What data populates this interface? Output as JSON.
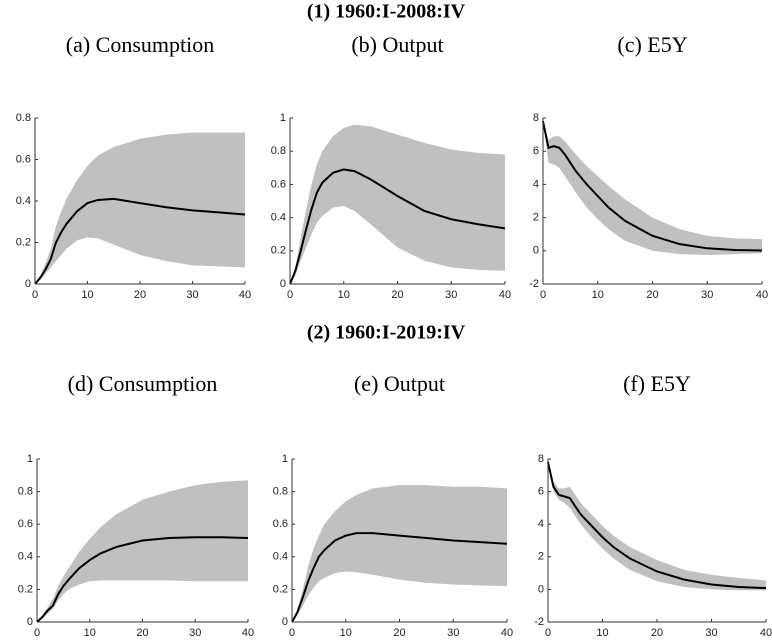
{
  "sections": [
    {
      "title": "(1) 1960:I-2008:IV"
    },
    {
      "title": "(2) 1960:I-2019:IV"
    }
  ],
  "chart_data": [
    {
      "type": "line",
      "title": "(a) Consumption",
      "x": [
        0,
        1,
        2,
        3,
        4,
        5,
        6,
        8,
        10,
        12,
        15,
        20,
        25,
        30,
        35,
        40
      ],
      "series": [
        {
          "color": "#000000",
          "band_color": "#c0c0c0",
          "values": [
            0,
            0.03,
            0.07,
            0.12,
            0.2,
            0.25,
            0.29,
            0.35,
            0.39,
            0.405,
            0.41,
            0.39,
            0.37,
            0.355,
            0.345,
            0.335
          ],
          "lower": [
            0,
            0.02,
            0.05,
            0.08,
            0.11,
            0.14,
            0.17,
            0.21,
            0.225,
            0.22,
            0.19,
            0.14,
            0.11,
            0.09,
            0.085,
            0.08
          ],
          "upper": [
            0,
            0.04,
            0.1,
            0.17,
            0.28,
            0.35,
            0.41,
            0.5,
            0.57,
            0.62,
            0.66,
            0.7,
            0.72,
            0.73,
            0.73,
            0.73
          ]
        }
      ],
      "xlim": [
        0,
        40
      ],
      "xticks": [
        0,
        10,
        20,
        30,
        40
      ],
      "ylim": [
        0,
        0.8
      ],
      "yticks": [
        0,
        0.2,
        0.4,
        0.6,
        0.8
      ]
    },
    {
      "type": "line",
      "title": "(b) Output",
      "x": [
        0,
        1,
        2,
        3,
        4,
        5,
        6,
        8,
        10,
        12,
        15,
        20,
        25,
        30,
        35,
        40
      ],
      "series": [
        {
          "color": "#000000",
          "band_color": "#c0c0c0",
          "values": [
            0,
            0.08,
            0.2,
            0.33,
            0.45,
            0.55,
            0.61,
            0.67,
            0.69,
            0.68,
            0.63,
            0.53,
            0.44,
            0.39,
            0.36,
            0.335
          ],
          "lower": [
            0,
            0.05,
            0.14,
            0.22,
            0.3,
            0.37,
            0.41,
            0.46,
            0.47,
            0.44,
            0.36,
            0.22,
            0.14,
            0.1,
            0.085,
            0.08
          ],
          "upper": [
            0,
            0.1,
            0.28,
            0.45,
            0.6,
            0.72,
            0.8,
            0.89,
            0.94,
            0.96,
            0.95,
            0.9,
            0.85,
            0.81,
            0.79,
            0.78
          ]
        }
      ],
      "xlim": [
        0,
        40
      ],
      "xticks": [
        0,
        10,
        20,
        30,
        40
      ],
      "ylim": [
        0,
        1
      ],
      "yticks": [
        0,
        0.2,
        0.4,
        0.6,
        0.8,
        1
      ]
    },
    {
      "type": "line",
      "title": "(c) E5Y",
      "x": [
        0,
        1,
        2,
        3,
        4,
        5,
        6,
        8,
        10,
        12,
        15,
        20,
        25,
        30,
        35,
        40
      ],
      "series": [
        {
          "color": "#000000",
          "band_color": "#c0c0c0",
          "values": [
            7.8,
            6.2,
            6.3,
            6.2,
            5.8,
            5.3,
            4.8,
            4.0,
            3.3,
            2.6,
            1.8,
            0.9,
            0.4,
            0.15,
            0.05,
            0.02
          ],
          "lower": [
            7.8,
            5.3,
            5.2,
            5.0,
            4.5,
            4.0,
            3.5,
            2.6,
            1.9,
            1.3,
            0.6,
            0,
            -0.2,
            -0.25,
            -0.2,
            -0.15
          ],
          "upper": [
            7.8,
            6.7,
            6.9,
            6.9,
            6.6,
            6.2,
            5.8,
            5.1,
            4.5,
            3.9,
            3.1,
            2.0,
            1.3,
            0.9,
            0.75,
            0.7
          ]
        }
      ],
      "xlim": [
        0,
        40
      ],
      "xticks": [
        0,
        10,
        20,
        30,
        40
      ],
      "ylim": [
        -2,
        8
      ],
      "yticks": [
        -2,
        0,
        2,
        4,
        6,
        8
      ]
    },
    {
      "type": "line",
      "title": "(d) Consumption",
      "x": [
        0,
        1,
        2,
        3,
        4,
        5,
        6,
        8,
        10,
        12,
        15,
        20,
        25,
        30,
        35,
        40
      ],
      "series": [
        {
          "color": "#000000",
          "band_color": "#c0c0c0",
          "values": [
            0,
            0.03,
            0.07,
            0.1,
            0.17,
            0.22,
            0.26,
            0.33,
            0.38,
            0.42,
            0.46,
            0.5,
            0.515,
            0.52,
            0.52,
            0.515
          ],
          "lower": [
            0,
            0.02,
            0.05,
            0.08,
            0.13,
            0.17,
            0.2,
            0.23,
            0.25,
            0.255,
            0.255,
            0.255,
            0.255,
            0.25,
            0.25,
            0.25
          ],
          "upper": [
            0,
            0.04,
            0.09,
            0.14,
            0.22,
            0.28,
            0.33,
            0.43,
            0.51,
            0.58,
            0.66,
            0.75,
            0.8,
            0.84,
            0.86,
            0.87
          ]
        }
      ],
      "xlim": [
        0,
        40
      ],
      "xticks": [
        0,
        10,
        20,
        30,
        40
      ],
      "ylim": [
        0,
        1
      ],
      "yticks": [
        0,
        0.2,
        0.4,
        0.6,
        0.8,
        1
      ]
    },
    {
      "type": "line",
      "title": "(e) Output",
      "x": [
        0,
        1,
        2,
        3,
        4,
        5,
        6,
        8,
        10,
        12,
        15,
        20,
        25,
        30,
        35,
        40
      ],
      "series": [
        {
          "color": "#000000",
          "band_color": "#c0c0c0",
          "values": [
            0,
            0.06,
            0.15,
            0.25,
            0.33,
            0.4,
            0.44,
            0.5,
            0.53,
            0.545,
            0.545,
            0.53,
            0.515,
            0.5,
            0.49,
            0.48
          ],
          "lower": [
            0,
            0.04,
            0.1,
            0.16,
            0.21,
            0.25,
            0.27,
            0.3,
            0.31,
            0.305,
            0.29,
            0.26,
            0.24,
            0.23,
            0.225,
            0.22
          ],
          "upper": [
            0,
            0.08,
            0.2,
            0.34,
            0.45,
            0.53,
            0.6,
            0.68,
            0.74,
            0.78,
            0.82,
            0.84,
            0.84,
            0.83,
            0.83,
            0.82
          ]
        }
      ],
      "xlim": [
        0,
        40
      ],
      "xticks": [
        0,
        10,
        20,
        30,
        40
      ],
      "ylim": [
        0,
        1
      ],
      "yticks": [
        0,
        0.2,
        0.4,
        0.6,
        0.8,
        1
      ]
    },
    {
      "type": "line",
      "title": "(f) E5Y",
      "x": [
        0,
        1,
        2,
        3,
        4,
        5,
        6,
        8,
        10,
        12,
        15,
        20,
        25,
        30,
        35,
        40
      ],
      "series": [
        {
          "color": "#000000",
          "band_color": "#c0c0c0",
          "values": [
            7.8,
            6.3,
            5.8,
            5.7,
            5.6,
            5.1,
            4.6,
            3.9,
            3.2,
            2.6,
            1.9,
            1.1,
            0.6,
            0.3,
            0.15,
            0.08
          ],
          "lower": [
            7.8,
            6.0,
            5.5,
            5.3,
            5.0,
            4.5,
            4.0,
            3.2,
            2.5,
            1.9,
            1.2,
            0.5,
            0.15,
            0,
            -0.05,
            -0.05
          ],
          "upper": [
            7.8,
            6.6,
            6.2,
            6.2,
            6.3,
            5.8,
            5.3,
            4.6,
            3.9,
            3.3,
            2.6,
            1.8,
            1.2,
            0.9,
            0.7,
            0.55
          ]
        }
      ],
      "xlim": [
        0,
        40
      ],
      "xticks": [
        0,
        10,
        20,
        30,
        40
      ],
      "ylim": [
        -2,
        8
      ],
      "yticks": [
        -2,
        0,
        2,
        4,
        6,
        8
      ]
    }
  ]
}
